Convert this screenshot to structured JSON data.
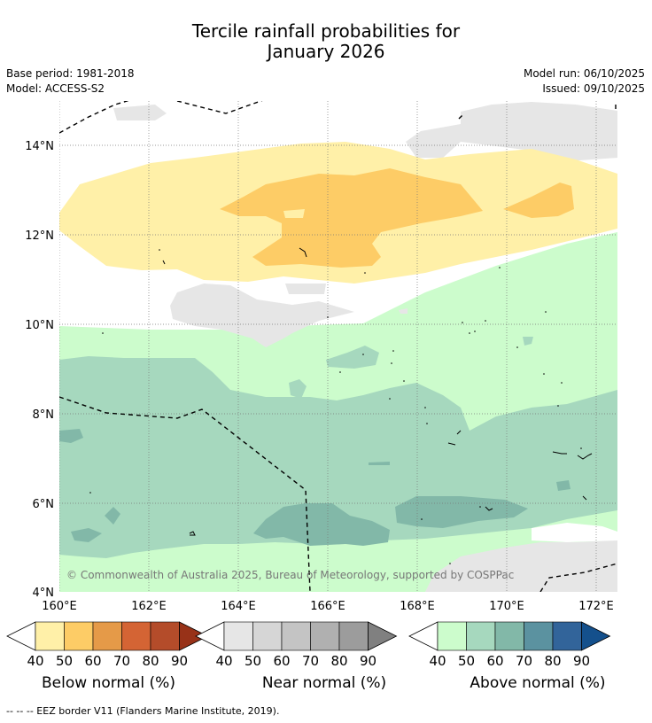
{
  "title_line1": "Tercile rainfall probabilities for",
  "title_line2": "January 2026",
  "base_period": "Base period: 1981-2018",
  "model": "Model: ACCESS-S2",
  "model_run": "Model run: 06/10/2025",
  "issued": "Issued: 09/10/2025",
  "copyright": "© Commonwealth of Australia 2025, Bureau of Meteorology, supported by COSPPac",
  "lat_labels": [
    "14°N",
    "12°N",
    "10°N",
    "8°N",
    "6°N",
    "4°N"
  ],
  "lon_labels": [
    "160°E",
    "162°E",
    "164°E",
    "166°E",
    "168°E",
    "170°E",
    "172°E"
  ],
  "map_extent": {
    "lon_min": 160,
    "lon_max": 172.5,
    "lat_min": 4,
    "lat_max": 15.1
  },
  "legends": [
    {
      "name": "below",
      "label": "Below normal (%)",
      "ticks": [
        "40",
        "50",
        "60",
        "70",
        "80",
        "90"
      ],
      "colors": [
        "#fff0a8",
        "#fdcc66",
        "#e59a48",
        "#d46434",
        "#b44c2a",
        "#983218"
      ],
      "under": "#ffffff"
    },
    {
      "name": "near",
      "label": "Near normal (%)",
      "ticks": [
        "40",
        "50",
        "60",
        "70",
        "80",
        "90"
      ],
      "colors": [
        "#e6e6e6",
        "#d6d6d6",
        "#c4c4c4",
        "#b0b0b0",
        "#9c9c9c",
        "#808080"
      ],
      "under": "#ffffff"
    },
    {
      "name": "above",
      "label": "Above normal (%)",
      "ticks": [
        "40",
        "50",
        "60",
        "70",
        "80",
        "90"
      ],
      "colors": [
        "#ccfccc",
        "#a6d8be",
        "#82b8a8",
        "#5b92a0",
        "#32649a",
        "#14508c"
      ],
      "under": "#ffffff"
    }
  ],
  "footer": "--  --  -- EEZ border V11 (Flanders Marine Institute, 2019)."
}
